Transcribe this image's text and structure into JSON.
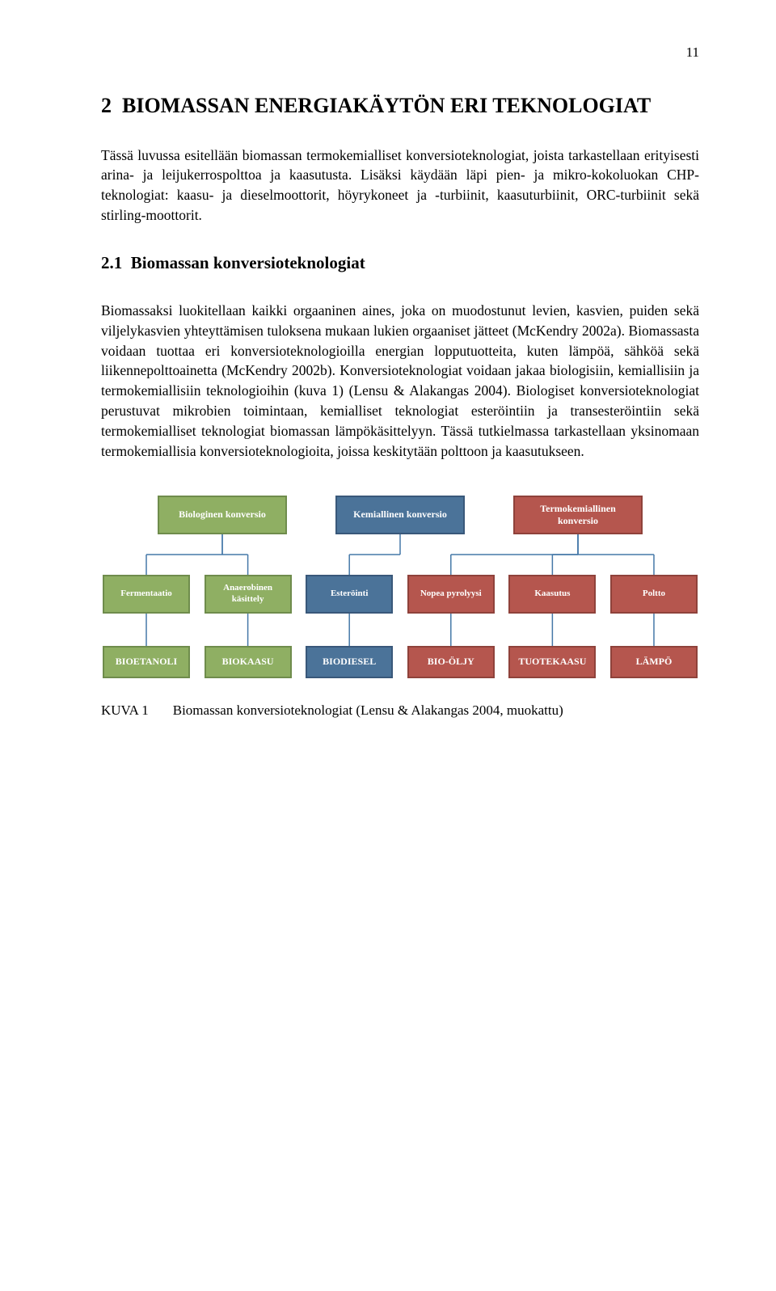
{
  "page_number": "11",
  "chapter": {
    "number": "2",
    "title": "BIOMASSAN ENERGIAKÄYTÖN ERI TEKNOLOGIAT"
  },
  "intro_paragraph": "Tässä luvussa esitellään biomassan termokemialliset konversioteknologiat, joista tarkastellaan erityisesti arina- ja leijukerrospolttoa ja kaasutusta. Lisäksi käydään läpi pien- ja mikro-kokoluokan CHP-teknologiat: kaasu- ja dieselmoottorit, höyrykoneet ja -turbiinit, kaasuturbiinit, ORC-turbiinit sekä stirling-moottorit.",
  "section": {
    "number": "2.1",
    "title": "Biomassan konversioteknologiat"
  },
  "body_paragraph": "Biomassaksi luokitellaan kaikki orgaaninen aines, joka on muodostunut levien, kasvien, puiden sekä viljelykasvien yhteyttämisen tuloksena mukaan lukien orgaaniset jätteet (McKendry 2002a). Biomassasta voidaan tuottaa eri konversioteknologioilla energian lopputuotteita, kuten lämpöä, sähköä sekä liikennepolttoainetta (McKendry 2002b). Konversioteknologiat voidaan jakaa biologisiin, kemiallisiin ja termokemiallisiin teknologioihin (kuva 1) (Lensu & Alakangas 2004). Biologiset konversioteknologiat perustuvat mikrobien toimintaan, kemialliset teknologiat esteröintiin ja transesteröintiin sekä termokemialliset teknologiat biomassan lämpökäsittelyyn. Tässä tutkielmassa tarkastellaan yksinomaan termokemiallisia konversioteknologioita, joissa keskitytään polttoon ja kaasutukseen.",
  "diagram": {
    "type": "tree",
    "top_nodes": [
      {
        "label": "Biologinen konversio",
        "fill": "#8faf63",
        "border": "#6f8c4c"
      },
      {
        "label": "Kemiallinen konversio",
        "fill": "#4b7399",
        "border": "#39587a"
      },
      {
        "label": "Termokemiallinen konversio",
        "fill": "#b5564e",
        "border": "#8f423b"
      }
    ],
    "mid_nodes": [
      {
        "label": "Fermentaatio",
        "fill": "#8faf63",
        "border": "#6f8c4c"
      },
      {
        "label": "Anaerobinen käsittely",
        "fill": "#8faf63",
        "border": "#6f8c4c"
      },
      {
        "label": "Esteröinti",
        "fill": "#4b7399",
        "border": "#39587a"
      },
      {
        "label": "Nopea pyrolyysi",
        "fill": "#b5564e",
        "border": "#8f423b"
      },
      {
        "label": "Kaasutus",
        "fill": "#b5564e",
        "border": "#8f423b"
      },
      {
        "label": "Poltto",
        "fill": "#b5564e",
        "border": "#8f423b"
      }
    ],
    "bot_nodes": [
      {
        "label": "BIOETANOLI",
        "fill": "#8faf63",
        "border": "#6f8c4c"
      },
      {
        "label": "BIOKAASU",
        "fill": "#8faf63",
        "border": "#6f8c4c"
      },
      {
        "label": "BIODIESEL",
        "fill": "#4b7399",
        "border": "#39587a"
      },
      {
        "label": "BIO-ÖLJY",
        "fill": "#b5564e",
        "border": "#8f423b"
      },
      {
        "label": "TUOTEKAASU",
        "fill": "#b5564e",
        "border": "#8f423b"
      },
      {
        "label": "LÄMPÖ",
        "fill": "#b5564e",
        "border": "#8f423b"
      }
    ],
    "connector_color": "#4578a8",
    "connector_width": 1.5
  },
  "caption": {
    "label": "KUVA 1",
    "text": "Biomassan konversioteknologiat (Lensu & Alakangas 2004, muokattu)"
  }
}
